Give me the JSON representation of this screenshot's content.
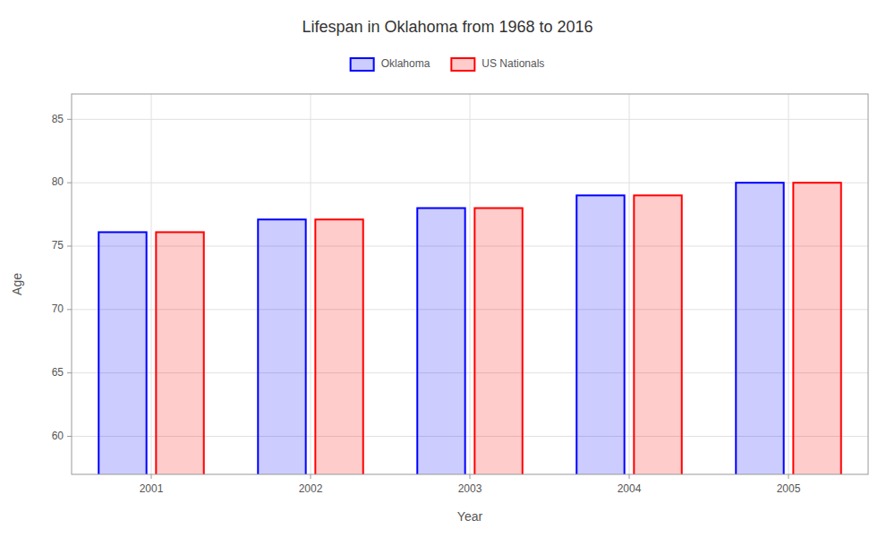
{
  "chart_data": {
    "type": "bar",
    "title": "Lifespan in Oklahoma from 1968 to 2016",
    "x_label": "Year",
    "y_label": "Age",
    "categories": [
      "2001",
      "2002",
      "2003",
      "2004",
      "2005"
    ],
    "series": [
      {
        "name": "Oklahoma",
        "color": "#0000ff",
        "values": [
          76.1,
          77.1,
          78.0,
          79.0,
          80.0
        ]
      },
      {
        "name": "US Nationals",
        "color": "#ff0000",
        "values": [
          76.1,
          77.1,
          78.0,
          79.0,
          80.0
        ]
      }
    ],
    "ylim": [
      57,
      87
    ],
    "yticks": [
      60,
      65,
      70,
      75,
      80,
      85
    ],
    "grid": true,
    "legend": "top"
  }
}
